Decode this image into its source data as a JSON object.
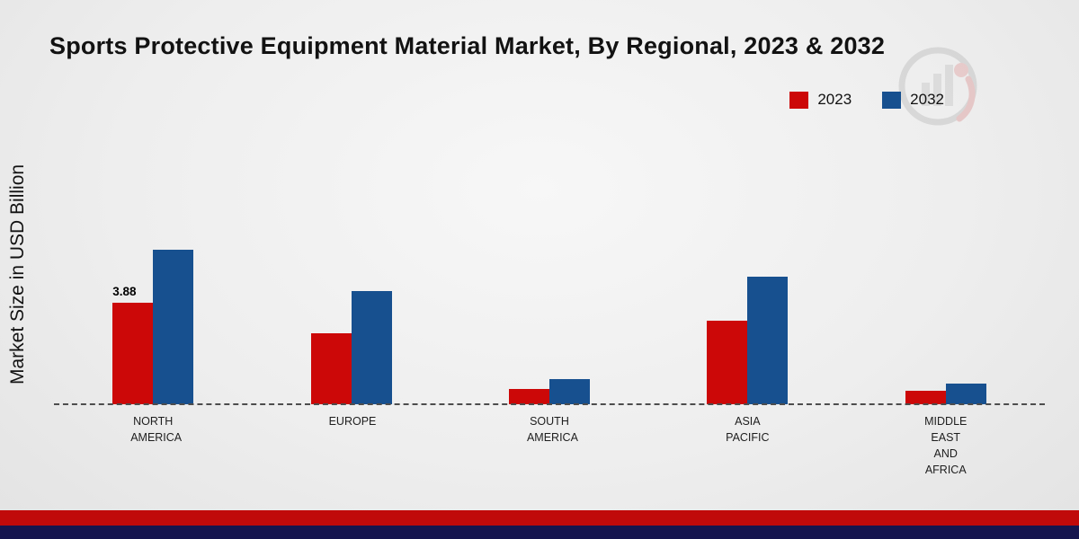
{
  "chart_data": {
    "type": "bar",
    "title": "Sports Protective Equipment Material Market, By Regional, 2023 & 2032",
    "ylabel": "Market Size in USD Billion",
    "categories": [
      "NORTH AMERICA",
      "EUROPE",
      "SOUTH AMERICA",
      "ASIA PACIFIC",
      "MIDDLE EAST AND AFRICA"
    ],
    "series": [
      {
        "name": "2023",
        "color": "#cc0808",
        "values": [
          3.88,
          2.7,
          0.6,
          3.2,
          0.5
        ]
      },
      {
        "name": "2032",
        "color": "#17508f",
        "values": [
          5.9,
          4.3,
          0.95,
          4.85,
          0.78
        ]
      }
    ],
    "annotations": [
      {
        "series": "2023",
        "category": "NORTH AMERICA",
        "text": "3.88"
      }
    ],
    "ylim": [
      0,
      6.5
    ],
    "grid": false,
    "legend_position": "top-right",
    "baseline_style": "dashed"
  },
  "footer": {
    "red_band_color": "#c00a0a",
    "navy_band_color": "#15154e"
  }
}
